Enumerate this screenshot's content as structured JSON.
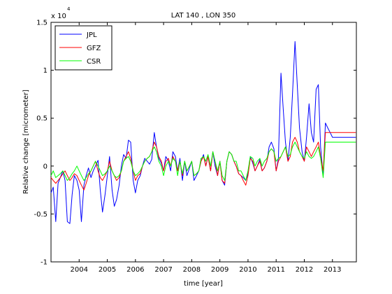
{
  "chart_data": {
    "type": "line",
    "title": "LAT 140 , LON 350",
    "xlabel": "time [year]",
    "ylabel": "Relative change [micrometer]",
    "xlim": [
      2003.0,
      2013.85
    ],
    "ylim": [
      -1.0,
      1.5
    ],
    "y_exponent_base": "x 10",
    "y_exponent_power": "4",
    "x_ticks": [
      2004,
      2005,
      2006,
      2007,
      2008,
      2009,
      2010,
      2011,
      2012,
      2013
    ],
    "x_tick_labels": [
      "2004",
      "2005",
      "2006",
      "2007",
      "2008",
      "2009",
      "2010",
      "2011",
      "2012",
      "2013"
    ],
    "y_ticks": [
      -1,
      -0.5,
      0,
      0.5,
      1,
      1.5
    ],
    "y_tick_labels": [
      "-1",
      "-0.5",
      "0",
      "0.5",
      "1",
      "1.5"
    ],
    "legend_position": "top-left",
    "grid": false,
    "series": [
      {
        "name": "JPL",
        "color": "#0000ff",
        "x": [
          2003.0,
          2003.08,
          2003.17,
          2003.25,
          2003.33,
          2003.42,
          2003.5,
          2003.58,
          2003.67,
          2003.75,
          2003.83,
          2003.92,
          2004.0,
          2004.08,
          2004.17,
          2004.25,
          2004.33,
          2004.42,
          2004.5,
          2004.58,
          2004.67,
          2004.75,
          2004.83,
          2004.92,
          2005.0,
          2005.08,
          2005.17,
          2005.25,
          2005.33,
          2005.42,
          2005.5,
          2005.58,
          2005.67,
          2005.75,
          2005.83,
          2005.92,
          2006.0,
          2006.08,
          2006.17,
          2006.25,
          2006.33,
          2006.42,
          2006.5,
          2006.58,
          2006.67,
          2006.75,
          2006.83,
          2006.92,
          2007.0,
          2007.08,
          2007.17,
          2007.25,
          2007.33,
          2007.42,
          2007.5,
          2007.58,
          2007.67,
          2007.75,
          2007.83,
          2007.92,
          2008.0,
          2008.08,
          2008.17,
          2008.25,
          2008.33,
          2008.42,
          2008.5,
          2008.58,
          2008.67,
          2008.75,
          2008.83,
          2008.92,
          2009.0,
          2009.08,
          2009.17,
          2009.25,
          2009.33,
          2009.42,
          2009.5,
          2009.58,
          2009.67,
          2009.75,
          2009.83,
          2009.92,
          2010.0,
          2010.08,
          2010.17,
          2010.25,
          2010.33,
          2010.42,
          2010.5,
          2010.58,
          2010.67,
          2010.75,
          2010.83,
          2010.92,
          2011.0,
          2011.08,
          2011.17,
          2011.25,
          2011.33,
          2011.42,
          2011.5,
          2011.58,
          2011.67,
          2011.75,
          2011.83,
          2011.92,
          2012.0,
          2012.08,
          2012.17,
          2012.25,
          2012.33,
          2012.42,
          2012.5,
          2012.58,
          2012.67,
          2012.75,
          2012.83,
          2012.92,
          2013.0,
          2013.08,
          2013.17,
          2013.25,
          2013.33,
          2013.42,
          2013.5,
          2013.58,
          2013.67,
          2013.75,
          2013.83
        ],
        "values": [
          -0.28,
          -0.22,
          -0.58,
          -0.18,
          -0.12,
          -0.05,
          -0.15,
          -0.58,
          -0.6,
          -0.3,
          -0.1,
          -0.15,
          -0.25,
          -0.58,
          -0.2,
          -0.1,
          -0.02,
          -0.12,
          -0.05,
          0.0,
          0.06,
          -0.25,
          -0.48,
          -0.3,
          -0.1,
          0.1,
          -0.25,
          -0.42,
          -0.35,
          -0.2,
          0.0,
          0.12,
          0.08,
          0.27,
          0.25,
          -0.15,
          -0.28,
          -0.15,
          -0.1,
          0.0,
          0.08,
          0.05,
          0.02,
          0.07,
          0.35,
          0.2,
          0.08,
          0.03,
          -0.05,
          0.1,
          0.05,
          -0.05,
          0.15,
          0.1,
          -0.05,
          0.08,
          -0.15,
          0.05,
          -0.1,
          -0.02,
          0.05,
          -0.15,
          -0.1,
          -0.05,
          0.05,
          0.12,
          0.0,
          0.1,
          -0.05,
          0.15,
          0.0,
          -0.1,
          0.05,
          -0.15,
          -0.2,
          0.05,
          0.15,
          0.12,
          0.05,
          0.0,
          -0.08,
          -0.1,
          -0.12,
          -0.15,
          -0.08,
          0.1,
          0.03,
          -0.05,
          0.0,
          0.07,
          -0.05,
          -0.02,
          0.05,
          0.2,
          0.25,
          0.18,
          -0.05,
          0.08,
          0.97,
          0.6,
          0.25,
          0.05,
          0.3,
          0.75,
          1.3,
          0.85,
          0.4,
          0.15,
          0.05,
          0.3,
          0.65,
          0.35,
          0.25,
          0.8,
          0.85,
          0.2,
          -0.1,
          0.45,
          0.4,
          0.35,
          0.3,
          0.3,
          0.3,
          0.3,
          0.3,
          0.3,
          0.3,
          0.3,
          0.3,
          0.3,
          0.3
        ]
      },
      {
        "name": "GFZ",
        "color": "#ff0000",
        "x": [
          2003.0,
          2003.08,
          2003.17,
          2003.25,
          2003.33,
          2003.42,
          2003.5,
          2003.58,
          2003.67,
          2003.75,
          2003.83,
          2003.92,
          2004.0,
          2004.08,
          2004.17,
          2004.25,
          2004.33,
          2004.42,
          2004.5,
          2004.58,
          2004.67,
          2004.75,
          2004.83,
          2004.92,
          2005.0,
          2005.08,
          2005.17,
          2005.25,
          2005.33,
          2005.42,
          2005.5,
          2005.58,
          2005.67,
          2005.75,
          2005.83,
          2005.92,
          2006.0,
          2006.08,
          2006.17,
          2006.25,
          2006.33,
          2006.42,
          2006.5,
          2006.58,
          2006.67,
          2006.75,
          2006.83,
          2006.92,
          2007.0,
          2007.08,
          2007.17,
          2007.25,
          2007.33,
          2007.42,
          2007.5,
          2007.58,
          2007.67,
          2007.75,
          2007.83,
          2007.92,
          2008.0,
          2008.08,
          2008.17,
          2008.25,
          2008.33,
          2008.42,
          2008.5,
          2008.58,
          2008.67,
          2008.75,
          2008.83,
          2008.92,
          2009.0,
          2009.08,
          2009.17,
          2009.25,
          2009.33,
          2009.42,
          2009.5,
          2009.58,
          2009.67,
          2009.75,
          2009.83,
          2009.92,
          2010.0,
          2010.08,
          2010.17,
          2010.25,
          2010.33,
          2010.42,
          2010.5,
          2010.58,
          2010.67,
          2010.75,
          2010.83,
          2010.92,
          2011.0,
          2011.08,
          2011.17,
          2011.25,
          2011.33,
          2011.42,
          2011.5,
          2011.58,
          2011.67,
          2011.75,
          2011.83,
          2011.92,
          2012.0,
          2012.08,
          2012.17,
          2012.25,
          2012.33,
          2012.42,
          2012.5,
          2012.58,
          2012.67,
          2012.75,
          2012.83,
          2012.92,
          2013.0,
          2013.08,
          2013.17,
          2013.25,
          2013.33,
          2013.42,
          2013.5,
          2013.58,
          2013.67,
          2013.75,
          2013.83
        ],
        "values": [
          -0.12,
          -0.15,
          -0.18,
          -0.15,
          -0.12,
          -0.08,
          -0.05,
          -0.1,
          -0.15,
          -0.12,
          -0.08,
          -0.1,
          -0.15,
          -0.2,
          -0.25,
          -0.18,
          -0.1,
          -0.05,
          0.0,
          0.05,
          -0.05,
          -0.12,
          -0.15,
          -0.1,
          -0.05,
          0.05,
          -0.05,
          -0.1,
          -0.15,
          -0.12,
          -0.05,
          0.05,
          0.1,
          0.15,
          0.08,
          -0.05,
          -0.15,
          -0.1,
          -0.08,
          0.0,
          0.05,
          0.08,
          0.1,
          0.15,
          0.25,
          0.2,
          0.1,
          0.05,
          -0.05,
          0.05,
          0.08,
          0.0,
          0.1,
          0.05,
          -0.05,
          0.05,
          -0.1,
          0.05,
          -0.05,
          0.0,
          0.05,
          -0.1,
          -0.08,
          -0.05,
          0.05,
          0.1,
          0.0,
          0.1,
          -0.05,
          0.15,
          0.05,
          -0.1,
          0.05,
          -0.15,
          -0.18,
          0.05,
          0.15,
          0.12,
          0.05,
          0.0,
          -0.08,
          -0.1,
          -0.15,
          -0.2,
          -0.1,
          0.08,
          0.05,
          -0.05,
          0.0,
          0.05,
          -0.05,
          -0.02,
          0.05,
          0.15,
          0.18,
          0.15,
          -0.05,
          0.05,
          0.1,
          0.15,
          0.2,
          0.05,
          0.1,
          0.25,
          0.3,
          0.25,
          0.15,
          0.1,
          0.05,
          0.2,
          0.15,
          0.1,
          0.15,
          0.2,
          0.25,
          0.1,
          -0.05,
          0.35,
          0.35,
          0.35,
          0.35,
          0.35,
          0.35,
          0.35,
          0.35,
          0.35,
          0.35,
          0.35,
          0.35,
          0.35,
          0.35
        ]
      },
      {
        "name": "CSR",
        "color": "#00ff00",
        "x": [
          2003.0,
          2003.08,
          2003.17,
          2003.25,
          2003.33,
          2003.42,
          2003.5,
          2003.58,
          2003.67,
          2003.75,
          2003.83,
          2003.92,
          2004.0,
          2004.08,
          2004.17,
          2004.25,
          2004.33,
          2004.42,
          2004.5,
          2004.58,
          2004.67,
          2004.75,
          2004.83,
          2004.92,
          2005.0,
          2005.08,
          2005.17,
          2005.25,
          2005.33,
          2005.42,
          2005.5,
          2005.58,
          2005.67,
          2005.75,
          2005.83,
          2005.92,
          2006.0,
          2006.08,
          2006.17,
          2006.25,
          2006.33,
          2006.42,
          2006.5,
          2006.58,
          2006.67,
          2006.75,
          2006.83,
          2006.92,
          2007.0,
          2007.08,
          2007.17,
          2007.25,
          2007.33,
          2007.42,
          2007.5,
          2007.58,
          2007.67,
          2007.75,
          2007.83,
          2007.92,
          2008.0,
          2008.08,
          2008.17,
          2008.25,
          2008.33,
          2008.42,
          2008.5,
          2008.58,
          2008.67,
          2008.75,
          2008.83,
          2008.92,
          2009.0,
          2009.08,
          2009.17,
          2009.25,
          2009.33,
          2009.42,
          2009.5,
          2009.58,
          2009.67,
          2009.75,
          2009.83,
          2009.92,
          2010.0,
          2010.08,
          2010.17,
          2010.25,
          2010.33,
          2010.42,
          2010.5,
          2010.58,
          2010.67,
          2010.75,
          2010.83,
          2010.92,
          2011.0,
          2011.08,
          2011.17,
          2011.25,
          2011.33,
          2011.42,
          2011.5,
          2011.58,
          2011.67,
          2011.75,
          2011.83,
          2011.92,
          2012.0,
          2012.08,
          2012.17,
          2012.25,
          2012.33,
          2012.42,
          2012.5,
          2012.58,
          2012.67,
          2012.75,
          2012.83,
          2012.92,
          2013.0,
          2013.08,
          2013.17,
          2013.25,
          2013.33,
          2013.42,
          2013.5,
          2013.58,
          2013.67,
          2013.75,
          2013.83
        ],
        "values": [
          -0.1,
          -0.05,
          -0.12,
          -0.1,
          -0.08,
          -0.05,
          -0.1,
          -0.15,
          -0.12,
          -0.08,
          -0.05,
          0.0,
          -0.05,
          -0.1,
          -0.15,
          -0.12,
          -0.08,
          -0.05,
          0.0,
          0.05,
          0.0,
          -0.05,
          -0.1,
          -0.08,
          -0.05,
          0.0,
          -0.05,
          -0.1,
          -0.12,
          -0.1,
          -0.05,
          0.05,
          0.08,
          0.1,
          0.05,
          -0.05,
          -0.1,
          -0.08,
          -0.05,
          0.0,
          0.05,
          0.08,
          0.1,
          0.15,
          0.2,
          0.15,
          0.05,
          0.0,
          -0.1,
          0.0,
          0.05,
          0.0,
          0.08,
          0.05,
          -0.1,
          0.05,
          -0.08,
          0.05,
          -0.05,
          0.0,
          0.05,
          -0.1,
          -0.08,
          -0.05,
          0.08,
          0.1,
          0.05,
          0.12,
          0.0,
          0.15,
          0.05,
          -0.05,
          0.05,
          -0.1,
          -0.15,
          0.05,
          0.15,
          0.12,
          0.05,
          0.05,
          -0.05,
          -0.05,
          -0.1,
          -0.15,
          -0.05,
          0.1,
          0.08,
          0.0,
          0.05,
          0.08,
          0.0,
          0.05,
          0.08,
          0.15,
          0.18,
          0.15,
          0.05,
          0.08,
          0.1,
          0.15,
          0.2,
          0.1,
          0.12,
          0.2,
          0.25,
          0.2,
          0.15,
          0.1,
          0.08,
          0.15,
          0.1,
          0.08,
          0.1,
          0.15,
          0.2,
          0.08,
          -0.12,
          0.25,
          0.25,
          0.25,
          0.25,
          0.25,
          0.25,
          0.25,
          0.25,
          0.25,
          0.25,
          0.25,
          0.25,
          0.25,
          0.25
        ]
      }
    ]
  }
}
